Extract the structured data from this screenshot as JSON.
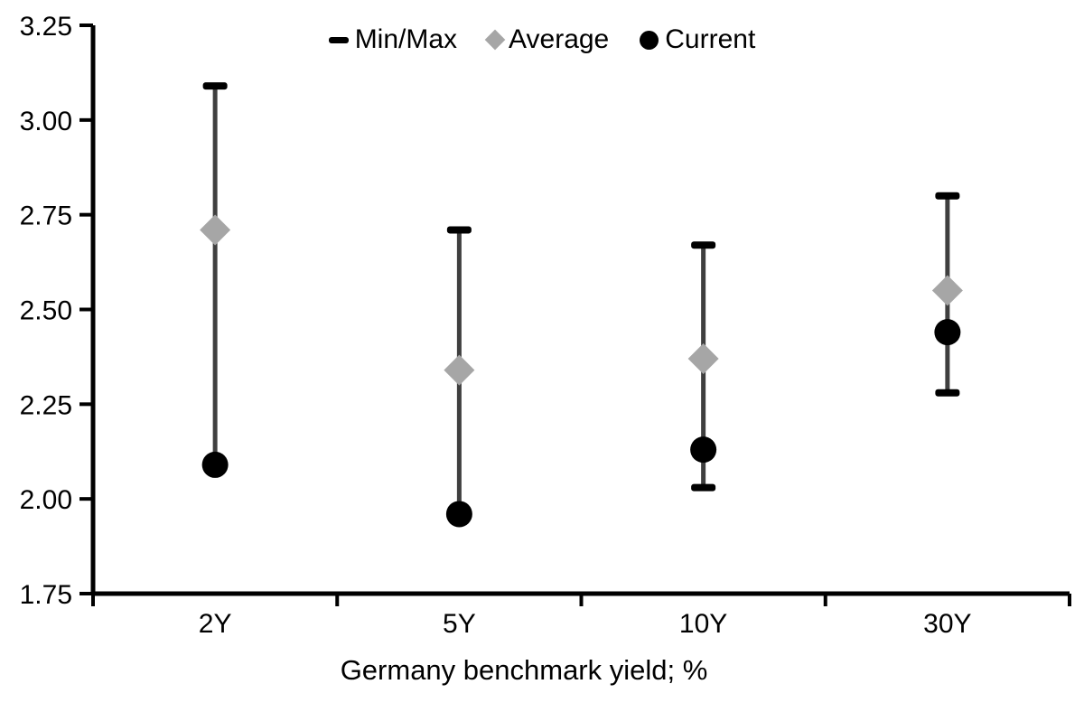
{
  "chart_data": {
    "type": "scatter",
    "subtype": "min-max-range",
    "title": "",
    "xlabel": "Germany benchmark yield; %",
    "ylabel": "",
    "categories": [
      "2Y",
      "5Y",
      "10Y",
      "30Y"
    ],
    "ylim": [
      1.75,
      3.25
    ],
    "ytick_step": 0.25,
    "ytick_labels": [
      "3.25",
      "3.00",
      "2.75",
      "2.50",
      "2.25",
      "2.00",
      "1.75"
    ],
    "grid": false,
    "legend_position": "top-center",
    "legend": [
      {
        "label": "Min/Max",
        "symbol": "dash",
        "color": "#000000"
      },
      {
        "label": "Average",
        "symbol": "diamond",
        "color": "#a6a6a6"
      },
      {
        "label": "Current",
        "symbol": "circle",
        "color": "#000000"
      }
    ],
    "series": [
      {
        "name": "Min/Max",
        "type": "range",
        "min": [
          2.09,
          1.96,
          2.03,
          2.28
        ],
        "max": [
          3.09,
          2.71,
          2.67,
          2.8
        ]
      },
      {
        "name": "Average",
        "type": "point",
        "marker": "diamond",
        "color": "#a6a6a6",
        "values": [
          2.71,
          2.34,
          2.37,
          2.55
        ]
      },
      {
        "name": "Current",
        "type": "point",
        "marker": "circle",
        "color": "#000000",
        "values": [
          2.09,
          1.96,
          2.13,
          2.44
        ]
      }
    ],
    "colors": {
      "range_line": "#3f3f3f",
      "cap": "#000000",
      "average_marker": "#a6a6a6",
      "current_marker": "#000000",
      "axis": "#000000",
      "background": "#ffffff"
    }
  }
}
